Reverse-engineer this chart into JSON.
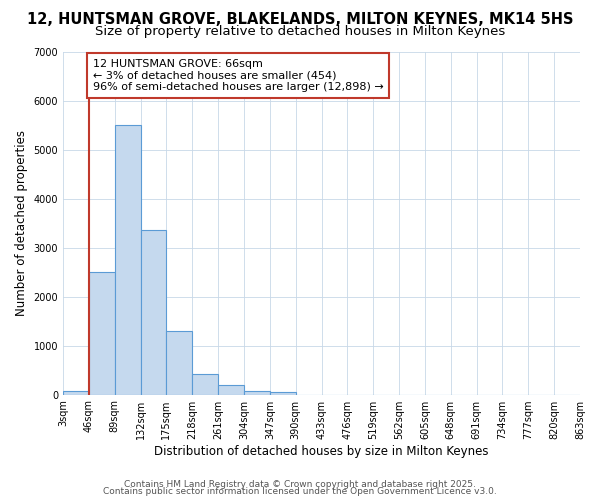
{
  "title": "12, HUNTSMAN GROVE, BLAKELANDS, MILTON KEYNES, MK14 5HS",
  "subtitle": "Size of property relative to detached houses in Milton Keynes",
  "xlabel": "Distribution of detached houses by size in Milton Keynes",
  "ylabel": "Number of detached properties",
  "bar_values": [
    75,
    2500,
    5500,
    3350,
    1300,
    420,
    200,
    70,
    50,
    0,
    0,
    0,
    0,
    0,
    0,
    0,
    0,
    0,
    0,
    0
  ],
  "bin_labels": [
    "3sqm",
    "46sqm",
    "89sqm",
    "132sqm",
    "175sqm",
    "218sqm",
    "261sqm",
    "304sqm",
    "347sqm",
    "390sqm",
    "433sqm",
    "476sqm",
    "519sqm",
    "562sqm",
    "605sqm",
    "648sqm",
    "691sqm",
    "734sqm",
    "777sqm",
    "820sqm",
    "863sqm"
  ],
  "bar_color": "#c5d9ee",
  "bar_edge_color": "#5b9bd5",
  "vline_color": "#c0392b",
  "annotation_line1": "12 HUNTSMAN GROVE: 66sqm",
  "annotation_line2": "← 3% of detached houses are smaller (454)",
  "annotation_line3": "96% of semi-detached houses are larger (12,898) →",
  "annotation_box_color": "#ffffff",
  "annotation_box_edge": "#c0392b",
  "ylim": [
    0,
    7000
  ],
  "yticks": [
    0,
    1000,
    2000,
    3000,
    4000,
    5000,
    6000,
    7000
  ],
  "footer_line1": "Contains HM Land Registry data © Crown copyright and database right 2025.",
  "footer_line2": "Contains public sector information licensed under the Open Government Licence v3.0.",
  "bg_color": "#ffffff",
  "plot_bg_color": "#ffffff",
  "title_fontsize": 10.5,
  "subtitle_fontsize": 9.5,
  "axis_label_fontsize": 8.5,
  "tick_fontsize": 7,
  "annotation_fontsize": 8,
  "footer_fontsize": 6.5
}
